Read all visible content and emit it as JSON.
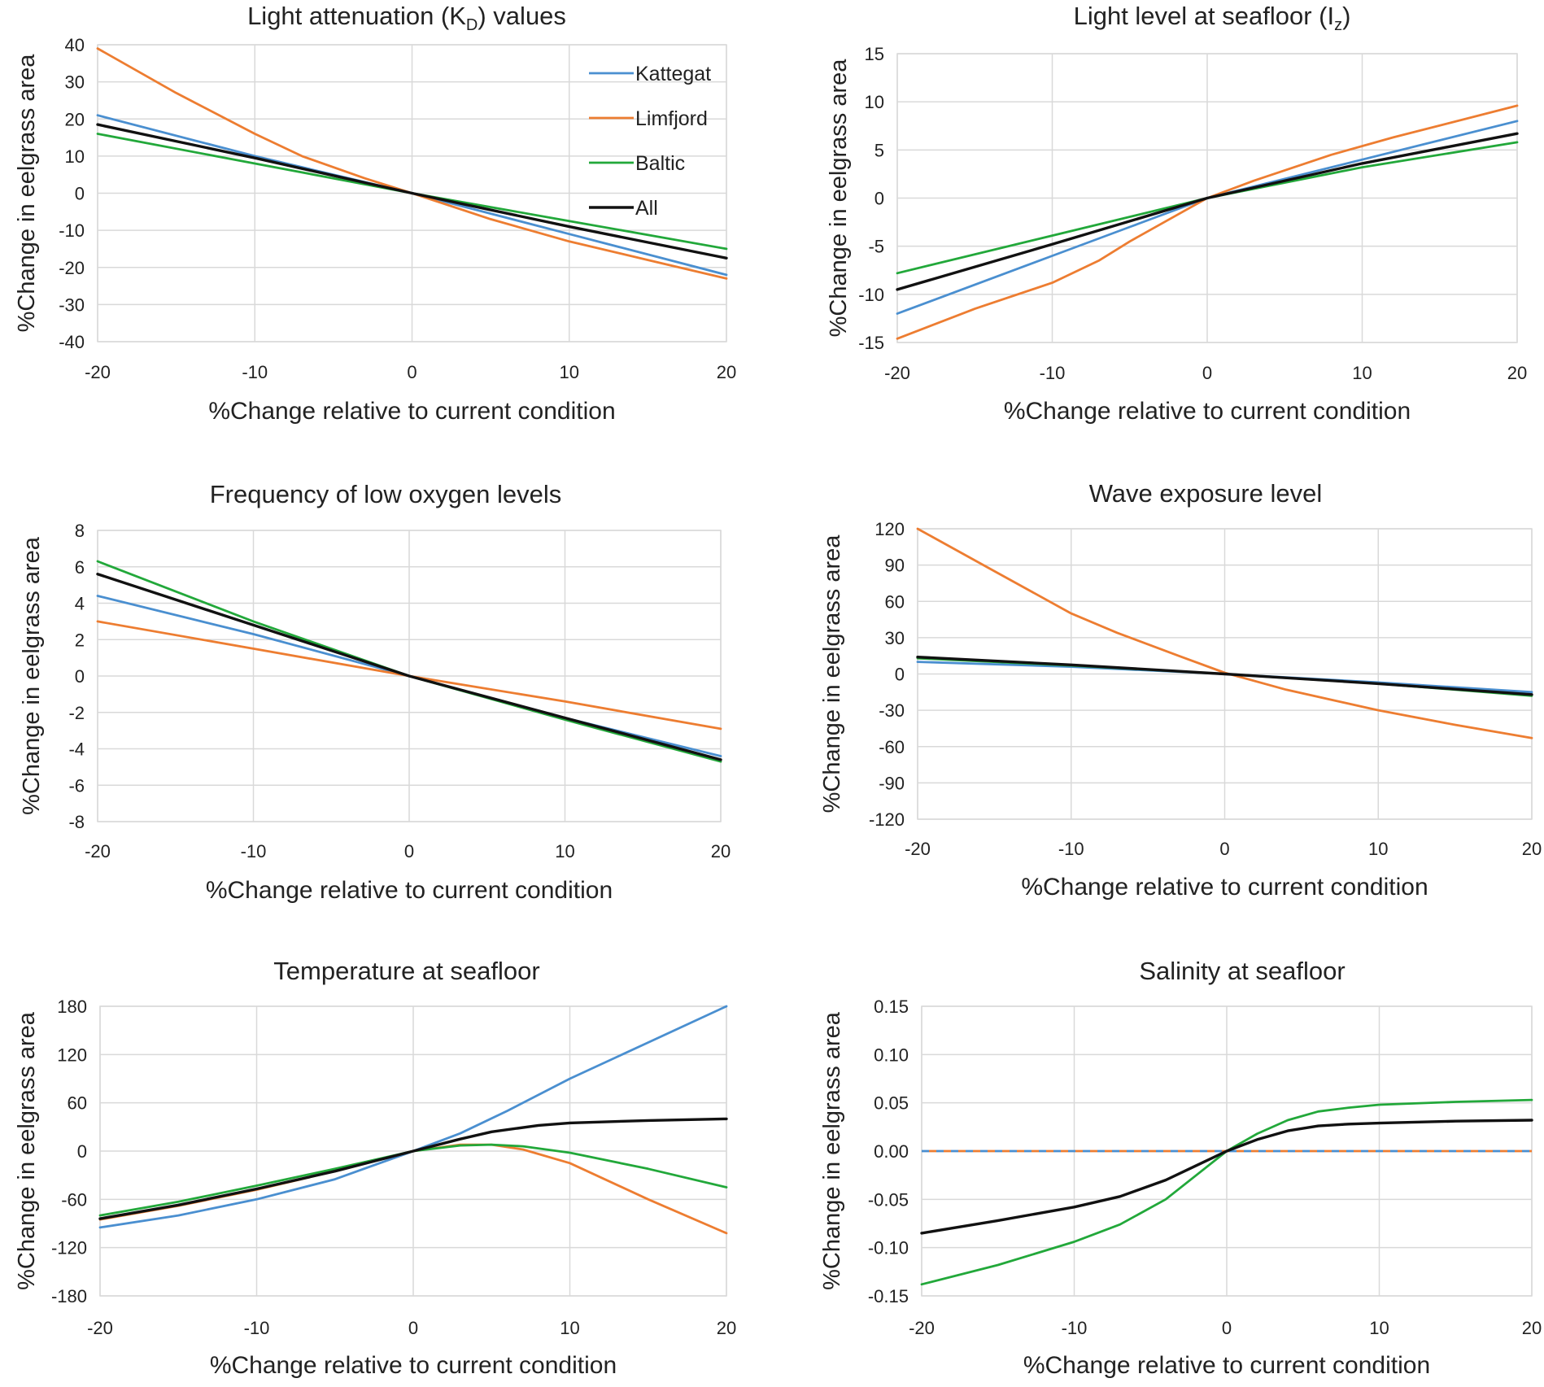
{
  "figure": {
    "xlabel": "%Change relative to current condition",
    "ylabel": "%Change in eelgrass area"
  },
  "legend": [
    {
      "name": "Kattegat",
      "color": "#4a8fd0"
    },
    {
      "name": "Limfjord",
      "color": "#ed7d31"
    },
    {
      "name": "Baltic",
      "color": "#22a83a"
    },
    {
      "name": "All",
      "color": "#111111"
    }
  ],
  "chart_data": [
    {
      "type": "line",
      "title": "Light attenuation (K",
      "title_sub": "D",
      "title_suffix": ") values",
      "xlabel": "%Change relative to current condition",
      "ylabel": "%Change in eelgrass area",
      "xlim": [
        -20,
        20
      ],
      "ylim": [
        -40,
        40
      ],
      "xticks": [
        "-20",
        "-10",
        "0",
        "10",
        "20"
      ],
      "yticks": [
        "40",
        "30",
        "20",
        "10",
        "0",
        "-10",
        "-20",
        "-30",
        "-40"
      ],
      "series": [
        {
          "name": "Kattegat",
          "color": "#4a8fd0",
          "x": [
            -20,
            -10,
            0,
            10,
            20
          ],
          "y": [
            21,
            10,
            0,
            -11,
            -22
          ]
        },
        {
          "name": "Limfjord",
          "color": "#ed7d31",
          "x": [
            -20,
            -15,
            -10,
            -7,
            -3,
            0,
            5,
            10,
            15,
            20
          ],
          "y": [
            39,
            27,
            16,
            10,
            4,
            0,
            -7,
            -13,
            -18,
            -23
          ]
        },
        {
          "name": "Baltic",
          "color": "#22a83a",
          "x": [
            -20,
            -10,
            0,
            10,
            20
          ],
          "y": [
            16,
            8,
            0,
            -7.5,
            -15
          ]
        },
        {
          "name": "All",
          "color": "#111111",
          "x": [
            -20,
            -10,
            0,
            10,
            20
          ],
          "y": [
            18.5,
            9.5,
            0,
            -9,
            -17.5
          ]
        }
      ]
    },
    {
      "type": "line",
      "title": "Light level at  seafloor (I",
      "title_sub": "z",
      "title_suffix": ")",
      "xlabel": "%Change relative to current condition",
      "ylabel": "%Change in eelgrass area",
      "xlim": [
        -20,
        20
      ],
      "ylim": [
        -15,
        15
      ],
      "xticks": [
        "-20",
        "-10",
        "0",
        "10",
        "20"
      ],
      "yticks": [
        "15",
        "10",
        "5",
        "0",
        "-5",
        "-10",
        "-15"
      ],
      "series": [
        {
          "name": "Kattegat",
          "color": "#4a8fd0",
          "x": [
            -20,
            -10,
            -5,
            0,
            5,
            10,
            20
          ],
          "y": [
            -12,
            -6,
            -3,
            0,
            2,
            4,
            8
          ]
        },
        {
          "name": "Limfjord",
          "color": "#ed7d31",
          "x": [
            -20,
            -15,
            -10,
            -7,
            -5,
            -2,
            0,
            3,
            8,
            12,
            20
          ],
          "y": [
            -14.6,
            -11.5,
            -8.8,
            -6.5,
            -4.5,
            -1.8,
            0,
            1.8,
            4.5,
            6.3,
            9.6
          ]
        },
        {
          "name": "Baltic",
          "color": "#22a83a",
          "x": [
            -20,
            -10,
            0,
            10,
            20
          ],
          "y": [
            -7.8,
            -3.9,
            0,
            3.2,
            5.8
          ]
        },
        {
          "name": "All",
          "color": "#111111",
          "x": [
            -20,
            -10,
            0,
            10,
            20
          ],
          "y": [
            -9.5,
            -4.8,
            0,
            3.6,
            6.7
          ]
        }
      ]
    },
    {
      "type": "line",
      "title": "Frequency of low oxygen levels",
      "title_sub": "",
      "title_suffix": "",
      "xlabel": "%Change relative to current condition",
      "ylabel": "%Change in eelgrass area",
      "xlim": [
        -20,
        20
      ],
      "ylim": [
        -8,
        8
      ],
      "xticks": [
        "-20",
        "-10",
        "0",
        "10",
        "20"
      ],
      "yticks": [
        "8",
        "6",
        "4",
        "2",
        "0",
        "-2",
        "-4",
        "-6",
        "-8"
      ],
      "series": [
        {
          "name": "Kattegat",
          "color": "#4a8fd0",
          "x": [
            -20,
            -10,
            0,
            10,
            20
          ],
          "y": [
            4.4,
            2.3,
            0,
            -2.3,
            -4.4
          ]
        },
        {
          "name": "Limfjord",
          "color": "#ed7d31",
          "x": [
            -20,
            -10,
            0,
            10,
            20
          ],
          "y": [
            3.0,
            1.5,
            0,
            -1.4,
            -2.9
          ]
        },
        {
          "name": "Baltic",
          "color": "#22a83a",
          "x": [
            -20,
            -10,
            0,
            10,
            20
          ],
          "y": [
            6.3,
            3.0,
            0,
            -2.4,
            -4.7
          ]
        },
        {
          "name": "All",
          "color": "#111111",
          "x": [
            -20,
            -10,
            0,
            10,
            20
          ],
          "y": [
            5.6,
            2.8,
            0,
            -2.3,
            -4.6
          ]
        }
      ]
    },
    {
      "type": "line",
      "title": "Wave exposure level",
      "title_sub": "",
      "title_suffix": "",
      "xlabel": "%Change relative to current condition",
      "ylabel": "%Change in eelgrass area",
      "xlim": [
        -20,
        20
      ],
      "ylim": [
        -120,
        120
      ],
      "xticks": [
        "-20",
        "-10",
        "0",
        "10",
        "20"
      ],
      "yticks": [
        "120",
        "90",
        "60",
        "30",
        "0",
        "-30",
        "-60",
        "-90",
        "-120"
      ],
      "series": [
        {
          "name": "Kattegat",
          "color": "#4a8fd0",
          "x": [
            -20,
            -10,
            0,
            10,
            20
          ],
          "y": [
            10,
            6,
            0,
            -7,
            -15
          ]
        },
        {
          "name": "Limfjord",
          "color": "#ed7d31",
          "x": [
            -20,
            -15,
            -10,
            -7,
            -3,
            0,
            4,
            10,
            15,
            20
          ],
          "y": [
            120,
            85,
            50,
            34,
            15,
            1,
            -13,
            -30,
            -42,
            -53
          ]
        },
        {
          "name": "Baltic",
          "color": "#22a83a",
          "x": [
            -20,
            -10,
            0,
            10,
            20
          ],
          "y": [
            13,
            7,
            0,
            -8,
            -18
          ]
        },
        {
          "name": "All",
          "color": "#111111",
          "x": [
            -20,
            -10,
            0,
            10,
            20
          ],
          "y": [
            14,
            7.5,
            0,
            -8,
            -17
          ]
        }
      ]
    },
    {
      "type": "line",
      "title": "Temperature at seafloor",
      "title_sub": "",
      "title_suffix": "",
      "xlabel": "%Change relative to current condition",
      "ylabel": "%Change in eelgrass area",
      "xlim": [
        -20,
        20
      ],
      "ylim": [
        -180,
        180
      ],
      "xticks": [
        "-20",
        "-10",
        "0",
        "10",
        "20"
      ],
      "yticks": [
        "180",
        "120",
        "60",
        "0",
        "-60",
        "-120",
        "-180"
      ],
      "series": [
        {
          "name": "Kattegat",
          "color": "#4a8fd0",
          "x": [
            -20,
            -15,
            -10,
            -5,
            0,
            3,
            6,
            10,
            15,
            20
          ],
          "y": [
            -95,
            -80,
            -60,
            -35,
            0,
            22,
            50,
            90,
            135,
            180
          ]
        },
        {
          "name": "Limfjord",
          "color": "#ed7d31",
          "x": [
            -20,
            -15,
            -10,
            -5,
            0,
            3,
            5,
            7,
            10,
            15,
            20
          ],
          "y": [
            -85,
            -68,
            -48,
            -25,
            0,
            8,
            8,
            2,
            -15,
            -60,
            -102
          ]
        },
        {
          "name": "Baltic",
          "color": "#22a83a",
          "x": [
            -20,
            -15,
            -10,
            -5,
            0,
            3,
            5,
            7,
            10,
            15,
            20
          ],
          "y": [
            -80,
            -63,
            -43,
            -22,
            0,
            7,
            8,
            6,
            -2,
            -22,
            -45
          ]
        },
        {
          "name": "All",
          "color": "#111111",
          "x": [
            -20,
            -15,
            -10,
            -5,
            0,
            3,
            5,
            8,
            10,
            15,
            20
          ],
          "y": [
            -84,
            -67,
            -47,
            -25,
            0,
            15,
            24,
            32,
            35,
            38,
            40
          ]
        }
      ]
    },
    {
      "type": "line",
      "title": "Salinity at seafloor",
      "title_sub": "",
      "title_suffix": "",
      "xlabel": "%Change relative to current condition",
      "ylabel": "%Change in eelgrass area",
      "xlim": [
        -20,
        20
      ],
      "ylim": [
        -0.15,
        0.15
      ],
      "xticks": [
        "-20",
        "-10",
        "0",
        "10",
        "20"
      ],
      "yticks": [
        "0.15",
        "0.10",
        "0.05",
        "0.00",
        "-0.05",
        "-0.10",
        "-0.15"
      ],
      "series": [
        {
          "name": "Kattegat",
          "color": "#4a8fd0",
          "dashed": true,
          "x": [
            -20,
            20
          ],
          "y": [
            0,
            0
          ]
        },
        {
          "name": "Limfjord",
          "color": "#ed7d31",
          "dashed": true,
          "x": [
            -20,
            20
          ],
          "y": [
            0,
            0
          ]
        },
        {
          "name": "Baltic",
          "color": "#22a83a",
          "x": [
            -20,
            -15,
            -10,
            -7,
            -4,
            -2,
            0,
            2,
            4,
            6,
            8,
            10,
            15,
            20
          ],
          "y": [
            -0.138,
            -0.118,
            -0.094,
            -0.076,
            -0.05,
            -0.025,
            0,
            0.018,
            0.032,
            0.041,
            0.045,
            0.048,
            0.051,
            0.053
          ]
        },
        {
          "name": "All",
          "color": "#111111",
          "x": [
            -20,
            -15,
            -10,
            -7,
            -4,
            -2,
            0,
            2,
            4,
            6,
            8,
            10,
            15,
            20
          ],
          "y": [
            -0.085,
            -0.072,
            -0.058,
            -0.047,
            -0.03,
            -0.015,
            0,
            0.012,
            0.021,
            0.026,
            0.028,
            0.029,
            0.031,
            0.032
          ]
        }
      ]
    }
  ]
}
